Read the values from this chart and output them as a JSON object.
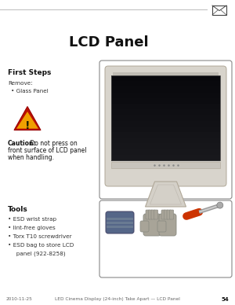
{
  "bg_color": "#ffffff",
  "title": "LCD Panel",
  "title_fontsize": 13,
  "first_steps_label": "First Steps",
  "remove_label": "Remove:",
  "glass_panel_label": "Glass Panel",
  "caution_bold": "Caution:",
  "caution_rest": " Do not press on\nfront surface of LCD panel\nwhen handling.",
  "tools_label": "Tools",
  "tools_items": [
    "ESD wrist strap",
    "lint-free gloves",
    "Torx T10 screwdriver",
    "ESD bag to store LCD"
  ],
  "tools_item_extra": "   panel (922-8258)",
  "footer_date": "2010-11-25",
  "footer_center": "LED Cinema Display (24-inch) Take Apart — LCD Panel",
  "footer_page": "54"
}
